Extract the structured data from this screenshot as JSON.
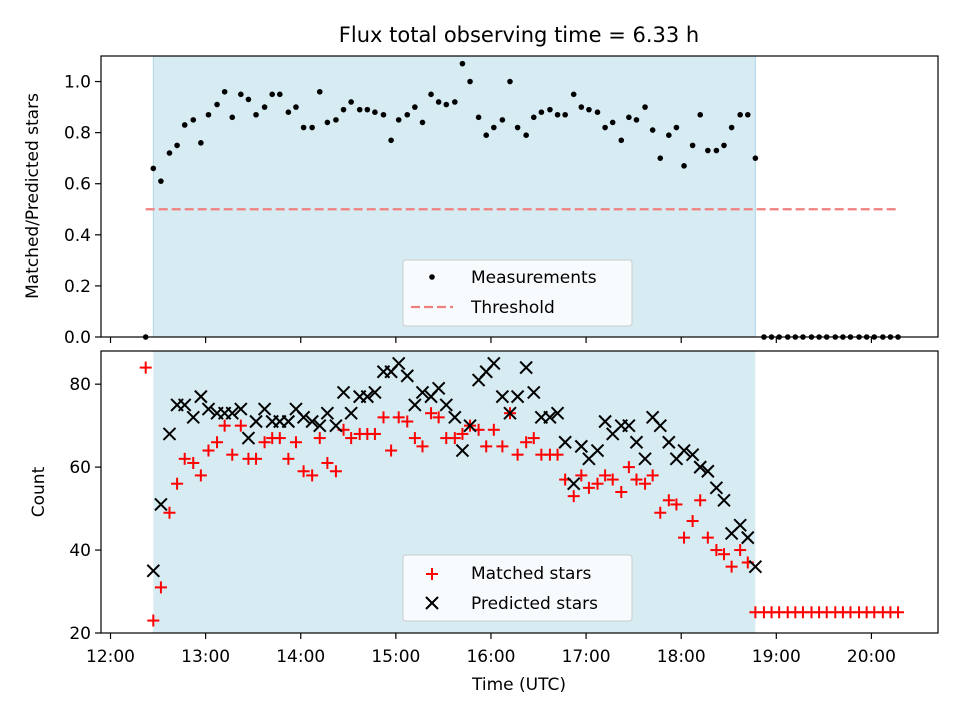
{
  "title": "Flux total observing time = 6.33 h",
  "chart_data": [
    {
      "type": "scatter",
      "panel": "top",
      "ylabel": "Matched/Predicted stars",
      "ylim": [
        0.0,
        1.1
      ],
      "yticks": [
        "0.0",
        "0.2",
        "0.4",
        "0.6",
        "0.8",
        "1.0"
      ],
      "xlim": [
        11.9,
        20.7
      ],
      "observing_window": [
        12.45,
        18.78
      ],
      "legend_position": "lower center",
      "series": [
        {
          "name": "Measurements",
          "marker": "dot",
          "color": "#000000",
          "x": [
            12.37,
            12.45,
            12.53,
            12.62,
            12.7,
            12.78,
            12.87,
            12.95,
            13.03,
            13.12,
            13.2,
            13.28,
            13.37,
            13.45,
            13.53,
            13.62,
            13.7,
            13.78,
            13.87,
            13.95,
            14.03,
            14.12,
            14.2,
            14.28,
            14.37,
            14.45,
            14.53,
            14.62,
            14.7,
            14.78,
            14.87,
            14.95,
            15.03,
            15.12,
            15.2,
            15.28,
            15.37,
            15.45,
            15.53,
            15.62,
            15.7,
            15.78,
            15.87,
            15.95,
            16.03,
            16.12,
            16.2,
            16.28,
            16.37,
            16.45,
            16.53,
            16.62,
            16.7,
            16.78,
            16.87,
            16.95,
            17.03,
            17.12,
            17.2,
            17.28,
            17.37,
            17.45,
            17.53,
            17.62,
            17.7,
            17.78,
            17.87,
            17.95,
            18.03,
            18.12,
            18.2,
            18.28,
            18.37,
            18.45,
            18.53,
            18.62,
            18.7,
            18.78,
            18.87,
            18.95,
            19.03,
            19.12,
            19.2,
            19.28,
            19.37,
            19.45,
            19.53,
            19.62,
            19.7,
            19.78,
            19.87,
            19.95,
            20.03,
            20.12,
            20.2,
            20.28
          ],
          "y": [
            0.0,
            0.66,
            0.61,
            0.72,
            0.75,
            0.83,
            0.85,
            0.76,
            0.87,
            0.91,
            0.96,
            0.86,
            0.95,
            0.93,
            0.87,
            0.9,
            0.95,
            0.95,
            0.88,
            0.9,
            0.82,
            0.82,
            0.96,
            0.84,
            0.85,
            0.89,
            0.92,
            0.89,
            0.89,
            0.88,
            0.87,
            0.77,
            0.85,
            0.87,
            0.9,
            0.84,
            0.95,
            0.92,
            0.91,
            0.92,
            1.07,
            1.0,
            0.86,
            0.79,
            0.82,
            0.85,
            1.0,
            0.82,
            0.79,
            0.86,
            0.88,
            0.89,
            0.87,
            0.87,
            0.95,
            0.9,
            0.89,
            0.88,
            0.82,
            0.84,
            0.77,
            0.86,
            0.85,
            0.9,
            0.81,
            0.7,
            0.79,
            0.82,
            0.67,
            0.75,
            0.87,
            0.73,
            0.73,
            0.75,
            0.82,
            0.87,
            0.87,
            0.7,
            0.0,
            0.0,
            0.0,
            0.0,
            0.0,
            0.0,
            0.0,
            0.0,
            0.0,
            0.0,
            0.0,
            0.0,
            0.0,
            0.0,
            0.0,
            0.0,
            0.0,
            0.0
          ]
        },
        {
          "name": "Threshold",
          "marker": "dashed-line",
          "color": "#f08080",
          "x": [
            12.37,
            20.28
          ],
          "y": [
            0.5,
            0.5
          ]
        }
      ]
    },
    {
      "type": "scatter",
      "panel": "bottom",
      "ylabel": "Count",
      "xlabel": "Time (UTC)",
      "ylim": [
        20,
        88
      ],
      "yticks": [
        "20",
        "40",
        "60",
        "80"
      ],
      "xlim": [
        11.9,
        20.7
      ],
      "xticks": [
        "12:00",
        "13:00",
        "14:00",
        "15:00",
        "16:00",
        "17:00",
        "18:00",
        "19:00",
        "20:00"
      ],
      "observing_window": [
        12.45,
        18.78
      ],
      "legend_position": "lower center",
      "series": [
        {
          "name": "Matched stars",
          "marker": "plus",
          "color": "#ff0000",
          "x": [
            12.37,
            12.45,
            12.53,
            12.62,
            12.7,
            12.78,
            12.87,
            12.95,
            13.03,
            13.12,
            13.2,
            13.28,
            13.37,
            13.45,
            13.53,
            13.62,
            13.7,
            13.78,
            13.87,
            13.95,
            14.03,
            14.12,
            14.2,
            14.28,
            14.37,
            14.45,
            14.53,
            14.62,
            14.7,
            14.78,
            14.87,
            14.95,
            15.03,
            15.12,
            15.2,
            15.28,
            15.37,
            15.45,
            15.53,
            15.62,
            15.7,
            15.78,
            15.87,
            15.95,
            16.03,
            16.12,
            16.2,
            16.28,
            16.37,
            16.45,
            16.53,
            16.62,
            16.7,
            16.78,
            16.87,
            16.95,
            17.03,
            17.12,
            17.2,
            17.28,
            17.37,
            17.45,
            17.53,
            17.62,
            17.7,
            17.78,
            17.87,
            17.95,
            18.03,
            18.12,
            18.2,
            18.28,
            18.37,
            18.45,
            18.53,
            18.62,
            18.7,
            18.78,
            18.87,
            18.95,
            19.03,
            19.12,
            19.2,
            19.28,
            19.37,
            19.45,
            19.53,
            19.62,
            19.7,
            19.78,
            19.87,
            19.95,
            20.03,
            20.12,
            20.2,
            20.28
          ],
          "y": [
            84,
            23,
            31,
            49,
            56,
            62,
            61,
            58,
            64,
            66,
            70,
            63,
            70,
            62,
            62,
            66,
            67,
            67,
            62,
            66,
            59,
            58,
            67,
            61,
            59,
            69,
            67,
            68,
            68,
            68,
            72,
            64,
            72,
            71,
            67,
            65,
            73,
            72,
            67,
            67,
            68,
            70,
            69,
            65,
            69,
            65,
            73,
            63,
            66,
            67,
            63,
            63,
            63,
            57,
            53,
            58,
            55,
            56,
            58,
            57,
            54,
            60,
            57,
            56,
            58,
            49,
            52,
            51,
            43,
            47,
            52,
            43,
            40,
            39,
            36,
            40,
            37,
            25,
            25,
            25,
            25,
            25,
            25,
            25,
            25,
            25,
            25,
            25,
            25,
            25,
            25,
            25,
            25,
            25,
            25,
            25
          ]
        },
        {
          "name": "Predicted stars",
          "marker": "x",
          "color": "#000000",
          "x": [
            12.45,
            12.53,
            12.62,
            12.7,
            12.78,
            12.87,
            12.95,
            13.03,
            13.12,
            13.2,
            13.28,
            13.37,
            13.45,
            13.53,
            13.62,
            13.7,
            13.78,
            13.87,
            13.95,
            14.03,
            14.12,
            14.2,
            14.28,
            14.37,
            14.45,
            14.53,
            14.62,
            14.7,
            14.78,
            14.87,
            14.95,
            15.03,
            15.12,
            15.2,
            15.28,
            15.37,
            15.45,
            15.53,
            15.62,
            15.7,
            15.78,
            15.87,
            15.95,
            16.03,
            16.12,
            16.2,
            16.28,
            16.37,
            16.45,
            16.53,
            16.62,
            16.7,
            16.78,
            16.87,
            16.95,
            17.03,
            17.12,
            17.2,
            17.28,
            17.37,
            17.45,
            17.53,
            17.62,
            17.7,
            17.78,
            17.87,
            17.95,
            18.03,
            18.12,
            18.2,
            18.28,
            18.37,
            18.45,
            18.53,
            18.62,
            18.7,
            18.78
          ],
          "y": [
            35,
            51,
            68,
            75,
            75,
            72,
            77,
            74,
            73,
            73,
            73,
            74,
            67,
            71,
            74,
            71,
            71,
            71,
            74,
            72,
            71,
            70,
            73,
            70,
            78,
            73,
            77,
            77,
            78,
            83,
            83,
            85,
            82,
            75,
            78,
            77,
            79,
            75,
            72,
            64,
            70,
            81,
            83,
            85,
            77,
            73,
            77,
            84,
            78,
            72,
            72,
            73,
            66,
            56,
            65,
            62,
            64,
            71,
            68,
            70,
            70,
            66,
            62,
            72,
            70,
            66,
            62,
            64,
            63,
            60,
            59,
            55,
            52,
            44,
            46,
            43,
            36
          ]
        }
      ]
    }
  ]
}
